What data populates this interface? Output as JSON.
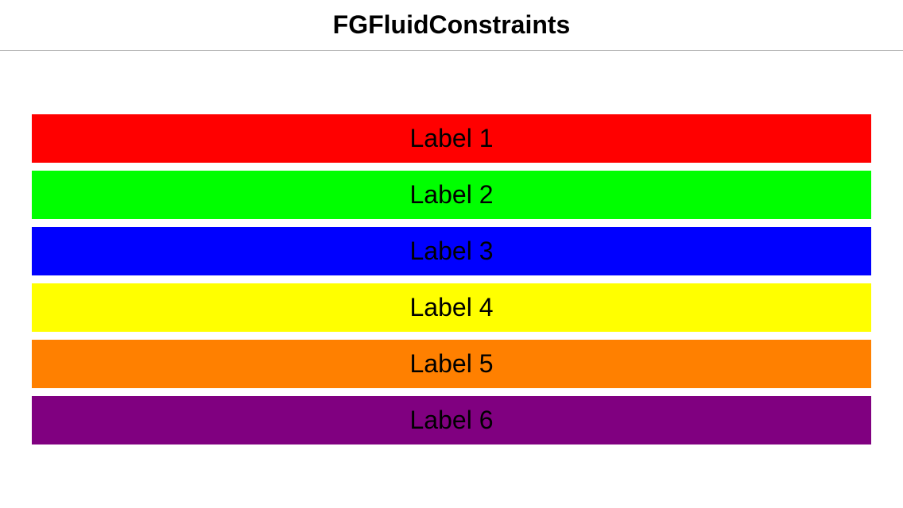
{
  "nav": {
    "title": "FGFluidConstraints"
  },
  "labels": [
    {
      "text": "Label 1",
      "color": "#ff0000"
    },
    {
      "text": "Label 2",
      "color": "#00ff00"
    },
    {
      "text": "Label 3",
      "color": "#0000ff"
    },
    {
      "text": "Label 4",
      "color": "#ffff00"
    },
    {
      "text": "Label 5",
      "color": "#ff8000"
    },
    {
      "text": "Label 6",
      "color": "#800080"
    }
  ]
}
